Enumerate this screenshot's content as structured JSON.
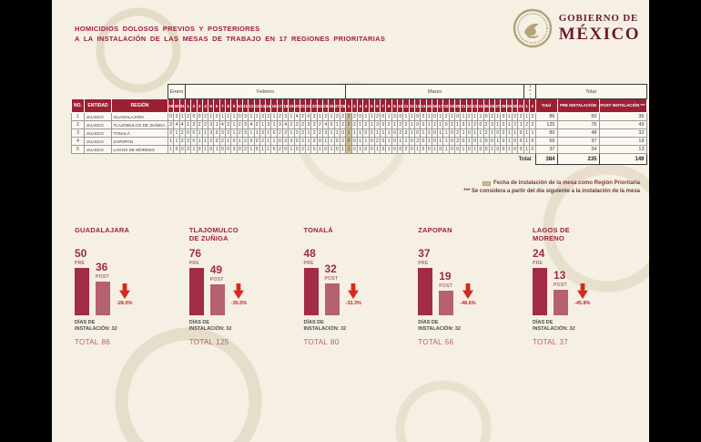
{
  "header": {
    "title_line1": "HOMICIDIOS DOLOSOS PREVIOS Y POSTERIORES",
    "title_line2": "A LA INSTALACIÓN DE LAS MESAS DE TRABAJO EN 17 REGIONES PRIORITARIAS",
    "logo": {
      "line1": "GOBIERNO DE",
      "line2": "MÉXICO"
    }
  },
  "table": {
    "header": {
      "no": "NO.",
      "entidad": "ENTIDAD",
      "region": "REGIÓN",
      "total": "Total",
      "pre": "PRE INSTALACIÓN",
      "post": "POST INSTALACIÓN ***"
    },
    "total_group_label": "Total",
    "months": [
      {
        "name": "Enero",
        "days": [
          29,
          30,
          31
        ]
      },
      {
        "name": "Febrero",
        "days": [
          1,
          2,
          3,
          4,
          5,
          6,
          7,
          8,
          9,
          10,
          11,
          12,
          13,
          14,
          15,
          16,
          17,
          18,
          19,
          20,
          21,
          22,
          23,
          24,
          25,
          26,
          27,
          28
        ]
      },
      {
        "name": "Marzo",
        "days": [
          1,
          2,
          3,
          4,
          5,
          6,
          7,
          8,
          9,
          10,
          11,
          12,
          13,
          14,
          15,
          16,
          17,
          18,
          19,
          20,
          21,
          22,
          23,
          24,
          25,
          26,
          27,
          28,
          29,
          30,
          31
        ]
      },
      {
        "name": "Abril",
        "days": [
          1,
          2
        ],
        "vertical": true
      }
    ],
    "highlight_day_index": 31,
    "rows": [
      {
        "no": 1,
        "entidad": "JALISCO",
        "region": "GUADALAJARA",
        "daily": [
          0,
          3,
          1,
          2,
          0,
          0,
          2,
          1,
          0,
          1,
          1,
          1,
          0,
          3,
          1,
          1,
          3,
          2,
          1,
          2,
          3,
          1,
          4,
          2,
          0,
          3,
          1,
          2,
          1,
          3,
          2,
          3,
          2,
          0,
          1,
          1,
          2,
          0,
          1,
          3,
          0,
          1,
          1,
          0,
          2,
          1,
          0,
          1,
          2,
          1,
          0,
          1,
          2,
          1,
          1,
          0,
          2,
          1,
          0,
          1,
          2,
          2,
          1,
          3
        ],
        "total": 86,
        "pre": 50,
        "post": 36
      },
      {
        "no": 2,
        "entidad": "JALISCO",
        "region": "TLAJOMULCO DE ZUÑIGA",
        "daily": [
          2,
          4,
          4,
          1,
          3,
          2,
          2,
          3,
          1,
          4,
          2,
          1,
          2,
          3,
          4,
          2,
          1,
          3,
          1,
          3,
          4,
          2,
          3,
          2,
          3,
          3,
          2,
          4,
          0,
          1,
          2,
          2,
          2,
          1,
          2,
          1,
          3,
          0,
          2,
          1,
          2,
          2,
          1,
          0,
          3,
          1,
          2,
          1,
          0,
          2,
          1,
          3,
          1,
          2,
          0,
          2,
          3,
          1,
          2,
          1,
          2,
          1,
          2,
          2
        ],
        "total": 125,
        "pre": 76,
        "post": 49
      },
      {
        "no": 3,
        "entidad": "JALISCO",
        "region": "TONALÁ",
        "daily": [
          2,
          1,
          2,
          0,
          0,
          1,
          1,
          3,
          0,
          3,
          2,
          1,
          2,
          3,
          1,
          1,
          3,
          1,
          0,
          2,
          2,
          1,
          3,
          2,
          1,
          2,
          2,
          3,
          1,
          1,
          0,
          1,
          1,
          1,
          0,
          2,
          1,
          1,
          1,
          0,
          2,
          3,
          1,
          0,
          1,
          2,
          0,
          1,
          1,
          0,
          2,
          1,
          0,
          1,
          1,
          2,
          1,
          0,
          2,
          1,
          1,
          0,
          1,
          1
        ],
        "total": 80,
        "pre": 48,
        "post": 32
      },
      {
        "no": 4,
        "entidad": "JALISCO",
        "region": "ZAPOPAN",
        "daily": [
          1,
          1,
          2,
          2,
          0,
          1,
          1,
          2,
          0,
          2,
          1,
          0,
          1,
          2,
          3,
          0,
          2,
          1,
          1,
          0,
          2,
          3,
          0,
          2,
          1,
          2,
          0,
          1,
          1,
          0,
          2,
          0,
          0,
          1,
          1,
          0,
          2,
          0,
          1,
          0,
          1,
          1,
          0,
          2,
          0,
          1,
          0,
          1,
          1,
          0,
          2,
          0,
          1,
          0,
          1,
          0,
          0,
          1,
          0,
          1,
          0,
          0,
          1,
          0
        ],
        "total": 56,
        "pre": 37,
        "post": 19
      },
      {
        "no": 5,
        "entidad": "JALISCO",
        "region": "LAGOS DE MORENO",
        "daily": [
          1,
          0,
          0,
          2,
          1,
          0,
          1,
          0,
          1,
          0,
          0,
          3,
          0,
          2,
          1,
          0,
          1,
          1,
          0,
          2,
          0,
          1,
          0,
          2,
          1,
          0,
          1,
          0,
          1,
          0,
          1,
          1,
          0,
          1,
          0,
          0,
          1,
          0,
          1,
          0,
          0,
          2,
          0,
          1,
          0,
          0,
          1,
          0,
          1,
          0,
          0,
          1,
          0,
          1,
          0,
          0,
          1,
          0,
          0,
          1,
          0,
          0,
          1,
          0
        ],
        "total": 37,
        "pre": 24,
        "post": 13
      }
    ],
    "totals_row": {
      "label": "Total",
      "total": 384,
      "pre": 235,
      "post": 149
    }
  },
  "legend": {
    "swatch_color": "#CBBD96",
    "line1": "Fecha de instalación de la mesa como Región Prioritaria",
    "line2": "*** Se considera a partir del día siguiente a la instalación de la mesa"
  },
  "chart_data": {
    "type": "bar",
    "categories": [
      "GUADALAJARA",
      "TLAJOMULCO DE ZUÑIGA",
      "TONALÁ",
      "ZAPOPAN",
      "LAGOS DE MORENO"
    ],
    "series": [
      {
        "name": "PRE",
        "values": [
          50,
          76,
          48,
          37,
          24
        ]
      },
      {
        "name": "POST",
        "values": [
          36,
          49,
          32,
          19,
          13
        ]
      }
    ],
    "labels": {
      "pre": "PRE",
      "post": "POST",
      "total_word": "TOTAL"
    },
    "groups": [
      {
        "name": "GUADALAJARA",
        "pre": 50,
        "post": 36,
        "change_pct": "-28.0%",
        "dias_line1": "DÍAS DE",
        "dias_line2": "INSTALACIÓN: 32",
        "total": 86
      },
      {
        "name": "TLAJOMULCO DE ZUÑIGA",
        "pre": 76,
        "post": 49,
        "change_pct": "-35.5%",
        "dias_line1": "DÍAS DE",
        "dias_line2": "INSTALACIÓN: 32",
        "total": 125
      },
      {
        "name": "TONALÁ",
        "pre": 48,
        "post": 32,
        "change_pct": "-33.3%",
        "dias_line1": "DÍAS DE",
        "dias_line2": "INSTALACIÓN: 32",
        "total": 80
      },
      {
        "name": "ZAPOPAN",
        "pre": 37,
        "post": 19,
        "change_pct": "-48.6%",
        "dias_line1": "DÍAS DE",
        "dias_line2": "INSTALACIÓN: 32",
        "total": 56
      },
      {
        "name": "LAGOS DE MORENO",
        "pre": 24,
        "post": 13,
        "change_pct": "-45.8%",
        "dias_line1": "DÍAS DE",
        "dias_line2": "INSTALACIÓN: 32",
        "total": 37
      }
    ]
  },
  "colors": {
    "slide_bg": "#F5F0E3",
    "maroon_header": "#9C2033",
    "title": "#A01D3F",
    "logo": "#6A1B32",
    "bar_pre": "#A22C44",
    "bar_post": "#B5616E",
    "arrow_red": "#D52B1E",
    "highlight_cell": "#CBBD96"
  }
}
